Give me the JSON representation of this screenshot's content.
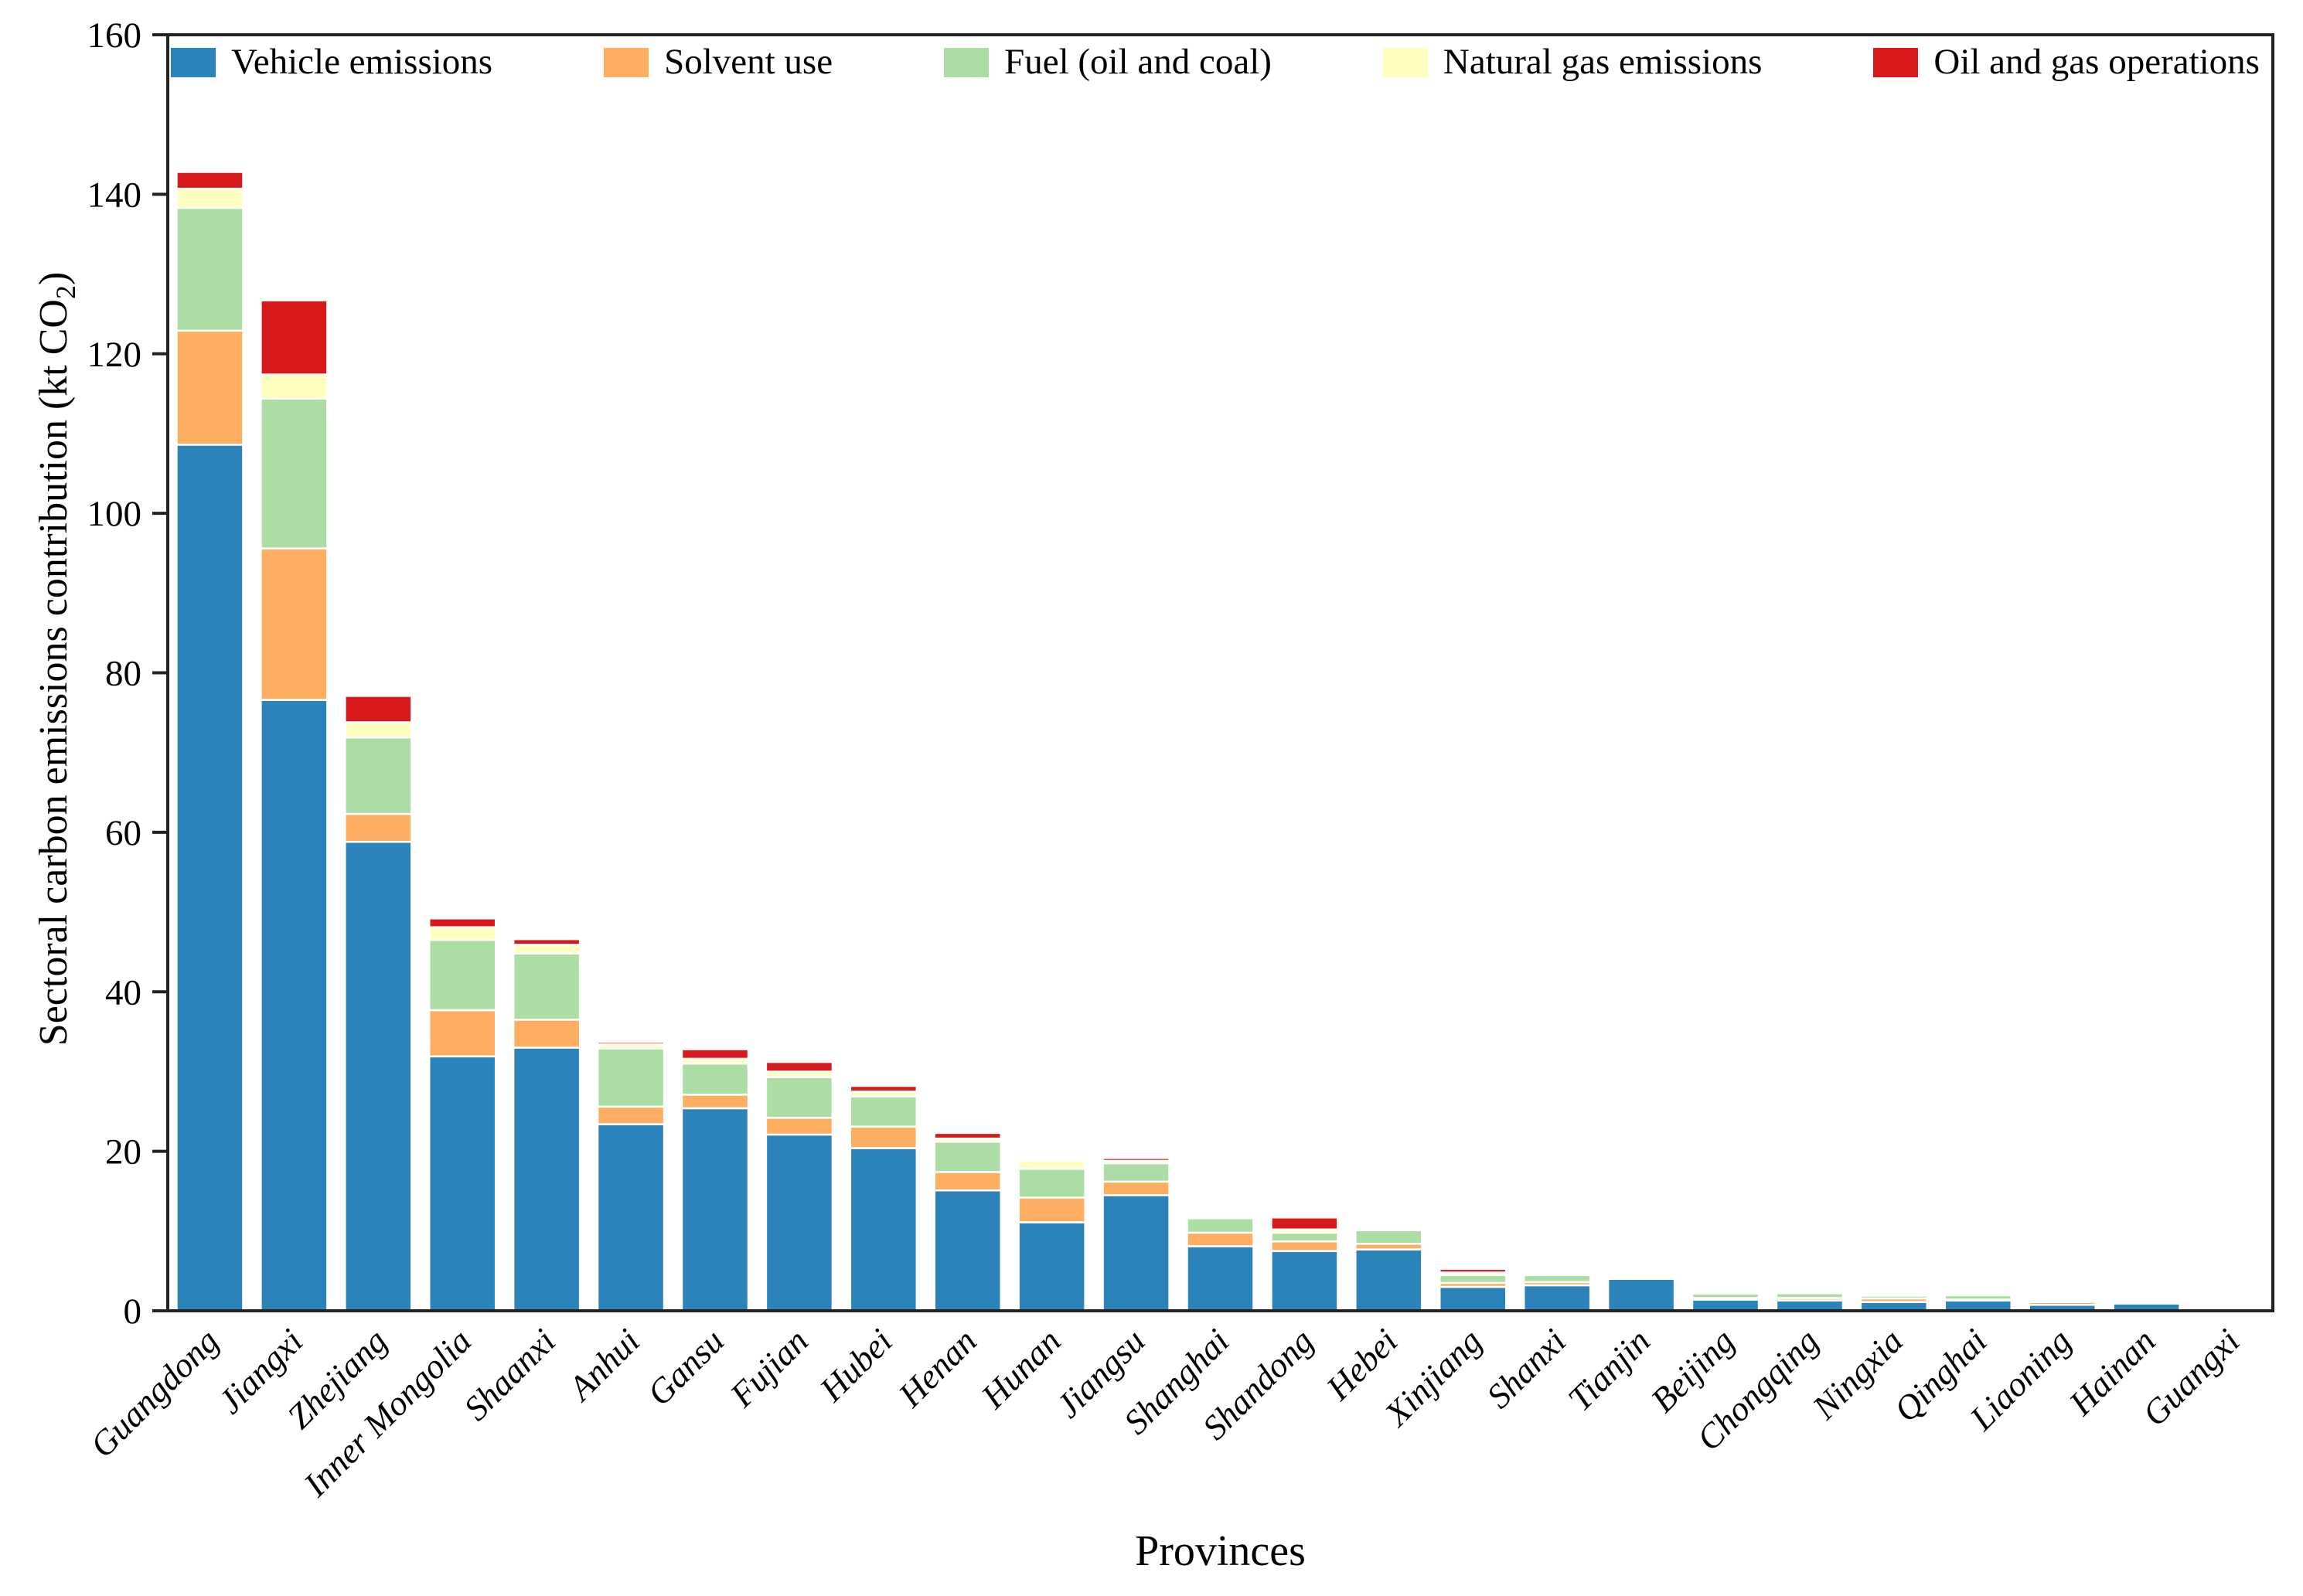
{
  "figure": {
    "xlabel": "Provinces",
    "ylabel_prefix": "Sectoral carbon emissions contribution (kt CO",
    "ylabel_sub": "2",
    "ylabel_suffix": ")"
  },
  "chart_data": {
    "type": "bar",
    "stacked": true,
    "title": "",
    "xlabel": "Provinces",
    "ylabel": "Sectoral carbon emissions contribution (kt CO2)",
    "ylim": [
      0,
      160
    ],
    "yticks": [
      0,
      20,
      40,
      60,
      80,
      100,
      120,
      140,
      160
    ],
    "grid": false,
    "legend_position": "top-inside-horizontal",
    "axis_color": "#222222",
    "bar_edge_color": "#ffffff",
    "categories": [
      "Guangdong",
      "Jiangxi",
      "Zhejiang",
      "Inner Mongolia",
      "Shaanxi",
      "Anhui",
      "Gansu",
      "Fujian",
      "Hubei",
      "Henan",
      "Hunan",
      "Jiangsu",
      "Shanghai",
      "Shandong",
      "Hebei",
      "Xinjiang",
      "Shanxi",
      "Tianjin",
      "Beijing",
      "Chongqing",
      "Ningxia",
      "Qinghai",
      "Liaoning",
      "Hainan",
      "Guangxi"
    ],
    "series": [
      {
        "name": "Vehicle emissions",
        "color": "#2b83ba",
        "values": [
          108.6,
          76.6,
          58.8,
          31.9,
          33.0,
          23.4,
          25.4,
          22.1,
          20.4,
          15.1,
          11.1,
          14.5,
          8.1,
          7.5,
          7.7,
          3.0,
          3.2,
          4.0,
          1.4,
          1.3,
          1.1,
          1.3,
          0.75,
          0.95,
          0.05
        ]
      },
      {
        "name": "Solvent use",
        "color": "#fdae61",
        "values": [
          14.3,
          19.0,
          3.5,
          5.8,
          3.5,
          2.2,
          1.7,
          2.1,
          2.7,
          2.3,
          3.1,
          1.7,
          1.7,
          1.2,
          0.7,
          0.5,
          0.4,
          0.1,
          0.2,
          0.3,
          0.45,
          0.1,
          0.35,
          0.05,
          0
        ]
      },
      {
        "name": "Fuel (oil and coal)",
        "color": "#abdda4",
        "values": [
          15.4,
          18.8,
          9.6,
          8.8,
          8.3,
          7.3,
          3.9,
          5.1,
          3.8,
          3.8,
          3.6,
          2.3,
          1.8,
          1.1,
          1.7,
          1.0,
          0.9,
          0.1,
          0.6,
          0.6,
          0.35,
          0.55,
          0.1,
          0.05,
          0
        ]
      },
      {
        "name": "Natural gas emissions",
        "color": "#ffffbf",
        "values": [
          2.4,
          3.0,
          1.9,
          1.6,
          1.1,
          0.5,
          0.6,
          0.7,
          0.6,
          0.4,
          1.0,
          0.3,
          0.1,
          0.4,
          0.2,
          0.3,
          0.1,
          0.3,
          0.05,
          0,
          0,
          0,
          0,
          0,
          0
        ]
      },
      {
        "name": "Oil and gas operations",
        "color": "#d7191c",
        "values": [
          2.1,
          9.3,
          3.3,
          1.1,
          0.7,
          0.3,
          1.2,
          1.2,
          0.7,
          0.7,
          0,
          0.35,
          0,
          1.5,
          0,
          0.45,
          0.1,
          0.1,
          0,
          0,
          0,
          0,
          0,
          0,
          0
        ]
      }
    ]
  }
}
